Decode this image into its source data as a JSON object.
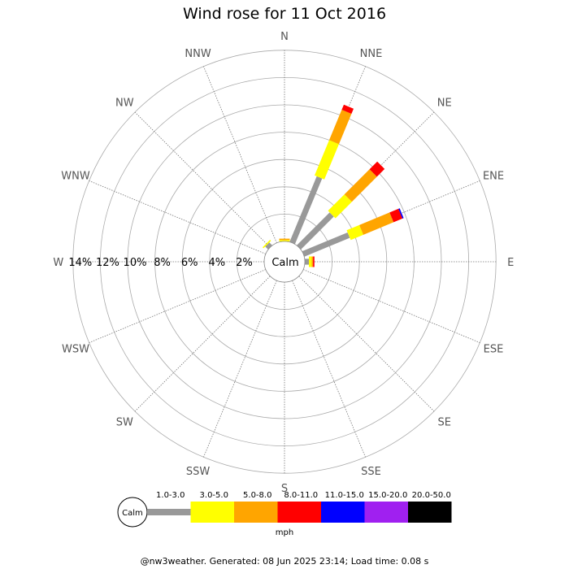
{
  "chart_data": {
    "type": "wind-rose",
    "title": "Wind rose for 11 Oct 2016",
    "directions": [
      "N",
      "NNE",
      "NE",
      "ENE",
      "E",
      "ESE",
      "SE",
      "SSE",
      "S",
      "SSW",
      "SW",
      "WSW",
      "W",
      "WNW",
      "NW",
      "NNW"
    ],
    "radial_labels": [
      "2%",
      "4%",
      "6%",
      "8%",
      "10%",
      "12%",
      "14%"
    ],
    "radial_max": 14,
    "center_label": "Calm",
    "unit": "mph",
    "speed_bins": [
      {
        "label": "1.0-3.0",
        "color": "#999999"
      },
      {
        "label": "3.0-5.0",
        "color": "#ffff00"
      },
      {
        "label": "5.0-8.0",
        "color": "#ffa500"
      },
      {
        "label": "8.0-11.0",
        "color": "#ff0000"
      },
      {
        "label": "11.0-15.0",
        "color": "#0000ff"
      },
      {
        "label": "15.0-20.0",
        "color": "#a020f0"
      },
      {
        "label": "20.0-50.0",
        "color": "#000000"
      }
    ],
    "series": [
      {
        "direction": "N",
        "values": [
          0.0,
          0.1,
          0.1,
          0,
          0,
          0,
          0
        ]
      },
      {
        "direction": "NNE",
        "values": [
          5.2,
          2.8,
          2.4,
          0.4,
          0,
          0,
          0
        ]
      },
      {
        "direction": "NE",
        "values": [
          3.4,
          1.7,
          2.6,
          0.8,
          0,
          0,
          0
        ]
      },
      {
        "direction": "ENE",
        "values": [
          3.6,
          1.0,
          2.4,
          0.7,
          0.1,
          0,
          0
        ]
      },
      {
        "direction": "E",
        "values": [
          0.3,
          0.2,
          0.1,
          0.1,
          0,
          0,
          0
        ]
      },
      {
        "direction": "ESE",
        "values": [
          0,
          0,
          0,
          0,
          0,
          0,
          0
        ]
      },
      {
        "direction": "SE",
        "values": [
          0,
          0,
          0,
          0,
          0,
          0,
          0
        ]
      },
      {
        "direction": "SSE",
        "values": [
          0,
          0,
          0,
          0,
          0,
          0,
          0
        ]
      },
      {
        "direction": "S",
        "values": [
          0,
          0,
          0,
          0,
          0,
          0,
          0
        ]
      },
      {
        "direction": "SSW",
        "values": [
          0,
          0,
          0,
          0,
          0,
          0,
          0
        ]
      },
      {
        "direction": "SW",
        "values": [
          0,
          0,
          0,
          0,
          0,
          0,
          0
        ]
      },
      {
        "direction": "WSW",
        "values": [
          0,
          0,
          0,
          0,
          0,
          0,
          0
        ]
      },
      {
        "direction": "W",
        "values": [
          0,
          0,
          0,
          0,
          0,
          0,
          0
        ]
      },
      {
        "direction": "WNW",
        "values": [
          0,
          0,
          0,
          0,
          0,
          0,
          0
        ]
      },
      {
        "direction": "NW",
        "values": [
          0.3,
          0.1,
          0,
          0,
          0,
          0,
          0
        ]
      },
      {
        "direction": "NNW",
        "values": [
          0,
          0,
          0,
          0,
          0,
          0,
          0
        ]
      }
    ]
  },
  "footer": "@nw3weather. Generated: 08 Jun 2025 23:14; Load time: 0.08 s"
}
